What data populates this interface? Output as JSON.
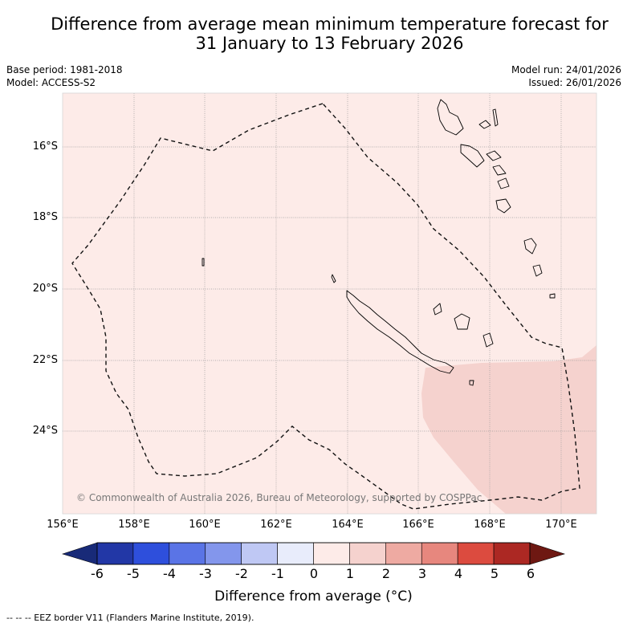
{
  "title": {
    "line1": "Difference from average mean minimum temperature forecast for",
    "line2": "31 January to 13 February 2026"
  },
  "meta_left": {
    "base_period": "Base period: 1981-2018",
    "model": "Model: ACCESS-S2"
  },
  "meta_right": {
    "model_run": "Model run: 24/01/2026",
    "issued": "Issued: 26/01/2026"
  },
  "map": {
    "lon_range": [
      156,
      171
    ],
    "lat_range": [
      -26.2,
      -14.4
    ],
    "x_ticks": [
      "156°E",
      "158°E",
      "160°E",
      "162°E",
      "164°E",
      "166°E",
      "168°E",
      "170°E"
    ],
    "y_ticks": [
      "16°S",
      "18°S",
      "20°S",
      "22°S",
      "24°S"
    ],
    "copyright": "© Commonwealth of Australia 2026, Bureau of Meteorology, supported by COSPPac",
    "dominant_anomaly": "0 to 1",
    "southeast_anomaly": "1 to 2"
  },
  "colorbar": {
    "labels": [
      "-6",
      "-5",
      "-4",
      "-3",
      "-2",
      "-1",
      "0",
      "1",
      "2",
      "3",
      "4",
      "5",
      "6"
    ],
    "colors": [
      "#2237a6",
      "#2e4fdc",
      "#5a74e6",
      "#8396ec",
      "#bfc8f4",
      "#e8ecfb",
      "#fdebe8",
      "#f5d2ce",
      "#eeaaa2",
      "#e7877e",
      "#dc4b3f",
      "#ac2823"
    ],
    "low_extend_color": "#182a78",
    "high_extend_color": "#6e1812",
    "title": "Difference from average (°C)"
  },
  "footnote": "--  --  -- EEZ border V11 (Flanders Marine Institute, 2019)."
}
